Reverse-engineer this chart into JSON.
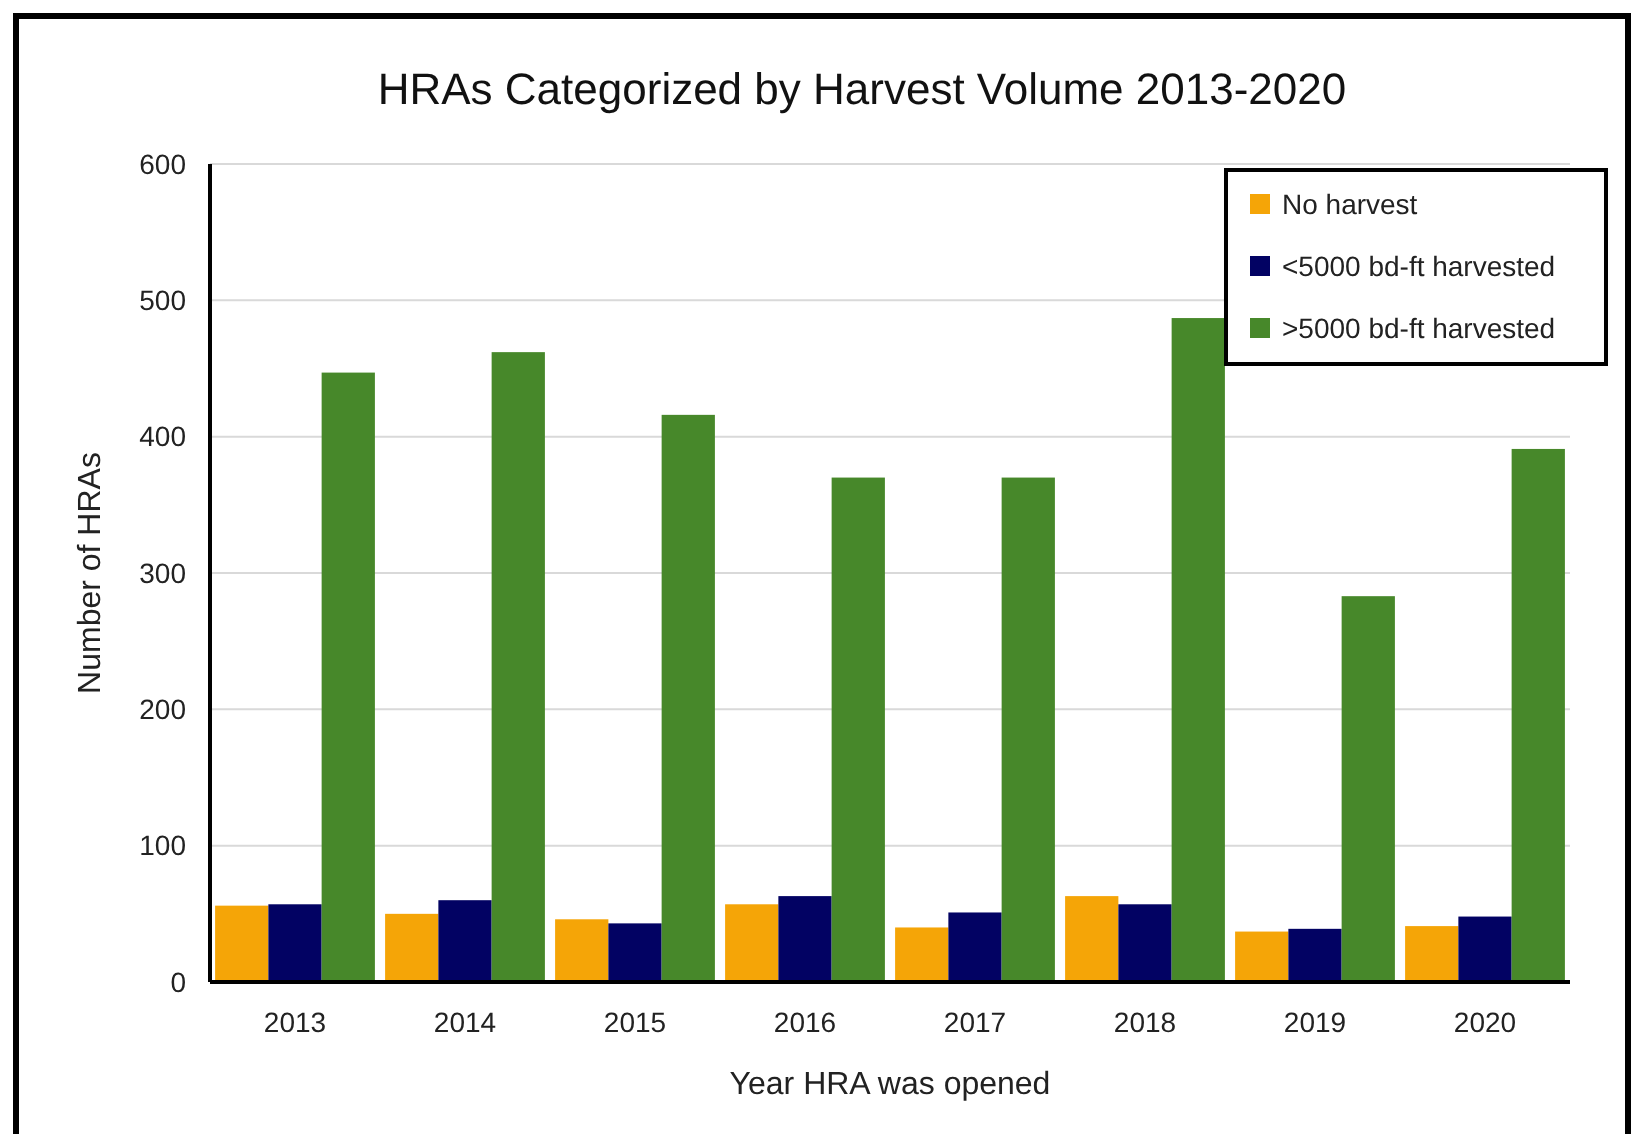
{
  "chart_data": {
    "type": "bar",
    "title": "HRAs Categorized by Harvest Volume 2013-2020",
    "xlabel": "Year HRA was opened",
    "ylabel": "Number of HRAs",
    "categories": [
      "2013",
      "2014",
      "2015",
      "2016",
      "2017",
      "2018",
      "2019",
      "2020"
    ],
    "series": [
      {
        "name": "No harvest",
        "color": "#f5a507",
        "values": [
          56,
          50,
          46,
          57,
          40,
          63,
          37,
          41
        ]
      },
      {
        "name": "<5000 bd-ft harvested",
        "color": "#020263",
        "values": [
          57,
          60,
          43,
          63,
          51,
          57,
          39,
          48
        ]
      },
      {
        "name": ">5000 bd-ft harvested",
        "color": "#47882a",
        "values": [
          447,
          462,
          416,
          370,
          370,
          487,
          283,
          391
        ]
      }
    ],
    "ylim": [
      0,
      600
    ],
    "yticks": [
      0,
      100,
      200,
      300,
      400,
      500,
      600
    ],
    "grid": "y",
    "legend": "top right"
  }
}
